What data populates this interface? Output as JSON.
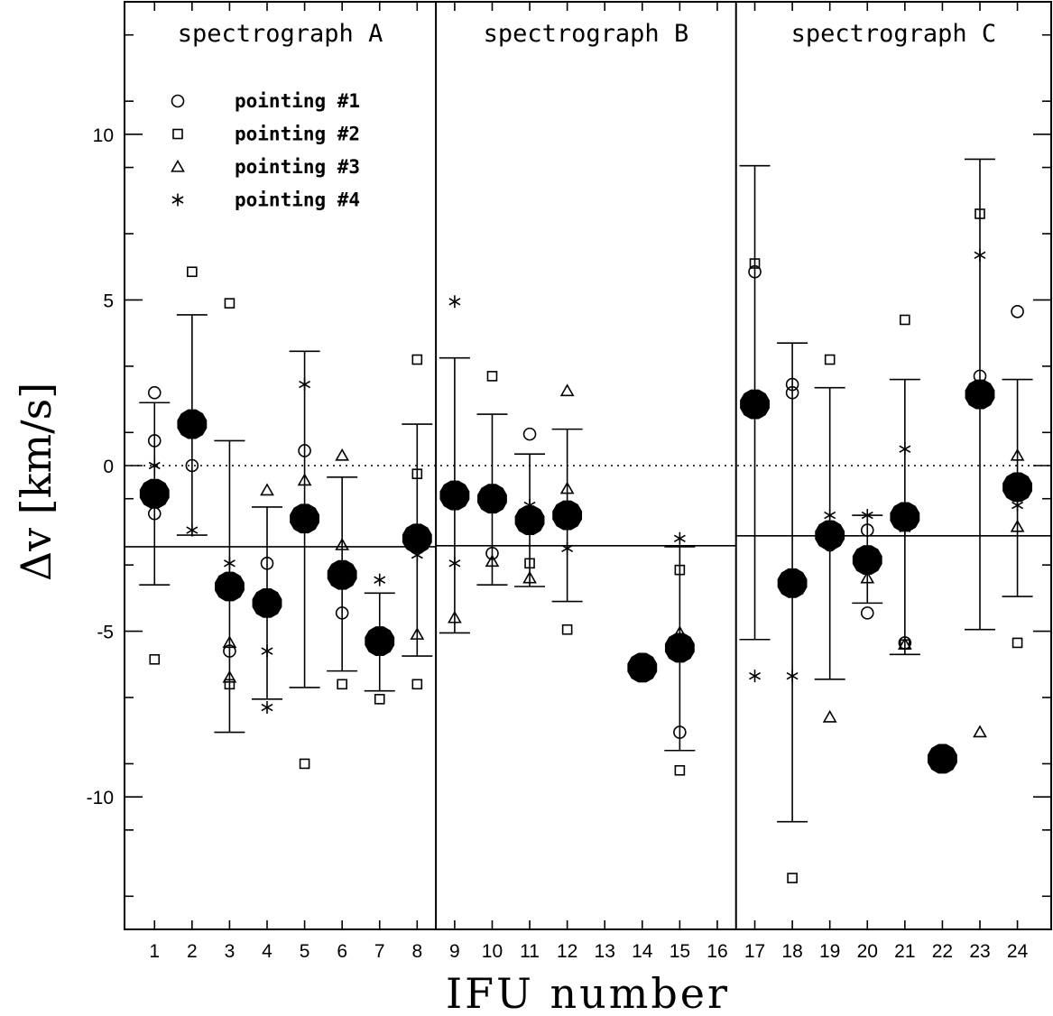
{
  "chart_data": {
    "type": "scatter",
    "xlabel": "IFU number",
    "ylabel": "Δv [km/s]",
    "xlim": [
      0.2,
      24.9
    ],
    "ylim": [
      -14,
      14
    ],
    "x_ticks": [
      1,
      2,
      3,
      4,
      5,
      6,
      7,
      8,
      9,
      10,
      11,
      12,
      13,
      14,
      15,
      16,
      17,
      18,
      19,
      20,
      21,
      22,
      23,
      24
    ],
    "y_tick_labels": [
      {
        "value": 10,
        "label": "10"
      },
      {
        "value": 5,
        "label": "5"
      },
      {
        "value": 0,
        "label": "0"
      },
      {
        "value": -5,
        "label": "-5"
      },
      {
        "value": -10,
        "label": "-10"
      }
    ],
    "zero_line": 0,
    "panels": [
      {
        "title": "spectrograph A",
        "x_range": [
          0.2,
          8.5
        ],
        "mean_line": -2.45
      },
      {
        "title": "spectrograph B",
        "x_range": [
          8.5,
          16.5
        ],
        "mean_line": -2.42
      },
      {
        "title": "spectrograph C",
        "x_range": [
          16.5,
          24.9
        ],
        "mean_line": -2.12
      }
    ],
    "legend": {
      "placement": "top-left",
      "entries": [
        {
          "marker": "circle",
          "label": "pointing #1"
        },
        {
          "marker": "square",
          "label": "pointing #2"
        },
        {
          "marker": "triangle",
          "label": "pointing #3"
        },
        {
          "marker": "star",
          "label": "pointing #4"
        }
      ]
    },
    "series": [
      {
        "name": "pointing #1",
        "marker": "circle",
        "points": [
          [
            1,
            2.2
          ],
          [
            1,
            0.75
          ],
          [
            1,
            -1.45
          ],
          [
            2,
            0.0
          ],
          [
            3,
            -5.6
          ],
          [
            4,
            -2.95
          ],
          [
            5,
            0.45
          ],
          [
            6,
            -4.45
          ],
          [
            10,
            -2.65
          ],
          [
            11,
            0.95
          ],
          [
            15,
            -8.05
          ],
          [
            17,
            5.85
          ],
          [
            18,
            2.45
          ],
          [
            18,
            2.2
          ],
          [
            19,
            -2.4
          ],
          [
            20,
            -1.95
          ],
          [
            20,
            -4.45
          ],
          [
            21,
            -5.35
          ],
          [
            23,
            2.7
          ],
          [
            24,
            4.65
          ]
        ]
      },
      {
        "name": "pointing #2",
        "marker": "square",
        "points": [
          [
            1,
            -5.85
          ],
          [
            2,
            5.85
          ],
          [
            3,
            4.9
          ],
          [
            3,
            -6.6
          ],
          [
            5,
            -9.0
          ],
          [
            6,
            -6.6
          ],
          [
            7,
            -7.05
          ],
          [
            8,
            3.2
          ],
          [
            8,
            -0.25
          ],
          [
            8,
            -6.6
          ],
          [
            10,
            2.7
          ],
          [
            11,
            -2.95
          ],
          [
            12,
            -4.95
          ],
          [
            15,
            -3.15
          ],
          [
            15,
            -9.2
          ],
          [
            17,
            6.1
          ],
          [
            18,
            -12.45
          ],
          [
            19,
            3.2
          ],
          [
            21,
            4.4
          ],
          [
            21,
            -5.4
          ],
          [
            23,
            7.6
          ],
          [
            24,
            -5.35
          ]
        ]
      },
      {
        "name": "pointing #3",
        "marker": "triangle",
        "points": [
          [
            3,
            -5.35
          ],
          [
            3,
            -6.4
          ],
          [
            4,
            -0.75
          ],
          [
            5,
            -0.45
          ],
          [
            6,
            0.3
          ],
          [
            6,
            -2.4
          ],
          [
            8,
            -5.1
          ],
          [
            9,
            -4.6
          ],
          [
            10,
            -2.9
          ],
          [
            11,
            -3.4
          ],
          [
            12,
            2.25
          ],
          [
            12,
            -0.7
          ],
          [
            15,
            -5.05
          ],
          [
            19,
            -7.6
          ],
          [
            20,
            -3.4
          ],
          [
            21,
            -5.4
          ],
          [
            23,
            -8.05
          ],
          [
            24,
            0.3
          ],
          [
            24,
            -1.85
          ]
        ]
      },
      {
        "name": "pointing #4",
        "marker": "star",
        "points": [
          [
            1,
            0.0
          ],
          [
            2,
            -1.95
          ],
          [
            3,
            -2.95
          ],
          [
            4,
            -5.6
          ],
          [
            4,
            -7.3
          ],
          [
            5,
            2.45
          ],
          [
            7,
            -3.45
          ],
          [
            8,
            -2.7
          ],
          [
            9,
            4.95
          ],
          [
            9,
            -2.95
          ],
          [
            11,
            -1.2
          ],
          [
            12,
            -2.5
          ],
          [
            15,
            -2.2
          ],
          [
            17,
            -6.35
          ],
          [
            18,
            -6.35
          ],
          [
            19,
            -1.5
          ],
          [
            20,
            -1.5
          ],
          [
            21,
            0.5
          ],
          [
            21,
            -1.9
          ],
          [
            23,
            6.35
          ],
          [
            24,
            -1.2
          ]
        ]
      },
      {
        "name": "",
        "marker": "filled-circle",
        "points": [
          [
            1,
            -0.85
          ],
          [
            2,
            1.25
          ],
          [
            3,
            -3.65
          ],
          [
            4,
            -4.15
          ],
          [
            5,
            -1.6
          ],
          [
            6,
            -3.3
          ],
          [
            7,
            -5.3
          ],
          [
            8,
            -2.2
          ],
          [
            9,
            -0.9
          ],
          [
            10,
            -1.0
          ],
          [
            11,
            -1.65
          ],
          [
            12,
            -1.5
          ],
          [
            14,
            -6.1
          ],
          [
            15,
            -5.5
          ],
          [
            17,
            1.85
          ],
          [
            18,
            -3.55
          ],
          [
            19,
            -2.1
          ],
          [
            20,
            -2.85
          ],
          [
            21,
            -1.55
          ],
          [
            22,
            -8.85
          ],
          [
            23,
            2.15
          ],
          [
            24,
            -0.65
          ]
        ]
      }
    ],
    "error_bars": [
      {
        "x": 1,
        "low": -3.6,
        "high": 1.9
      },
      {
        "x": 2,
        "low": -2.1,
        "high": 4.55
      },
      {
        "x": 3,
        "low": -8.05,
        "high": 0.75
      },
      {
        "x": 4,
        "low": -7.05,
        "high": -1.25
      },
      {
        "x": 5,
        "low": -6.7,
        "high": 3.45
      },
      {
        "x": 6,
        "low": -6.2,
        "high": -0.35
      },
      {
        "x": 7,
        "low": -6.8,
        "high": -3.85
      },
      {
        "x": 8,
        "low": -5.75,
        "high": 1.25
      },
      {
        "x": 9,
        "low": -5.05,
        "high": 3.25
      },
      {
        "x": 10,
        "low": -3.6,
        "high": 1.55
      },
      {
        "x": 11,
        "low": -3.65,
        "high": 0.35
      },
      {
        "x": 12,
        "low": -4.1,
        "high": 1.1
      },
      {
        "x": 15,
        "low": -8.6,
        "high": -2.45
      },
      {
        "x": 17,
        "low": -5.25,
        "high": 9.05
      },
      {
        "x": 18,
        "low": -10.75,
        "high": 3.7
      },
      {
        "x": 19,
        "low": -6.45,
        "high": 2.35
      },
      {
        "x": 20,
        "low": -4.15,
        "high": -1.5
      },
      {
        "x": 21,
        "low": -5.7,
        "high": 2.6
      },
      {
        "x": 23,
        "low": -4.95,
        "high": 9.25
      },
      {
        "x": 24,
        "low": -3.95,
        "high": 2.6
      }
    ]
  }
}
